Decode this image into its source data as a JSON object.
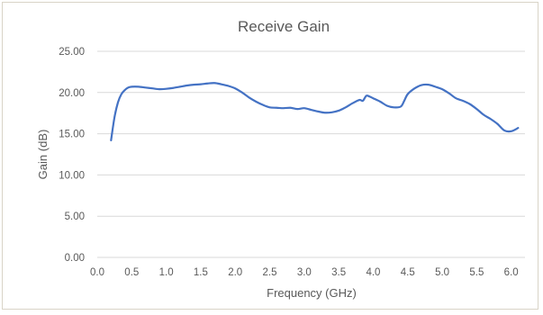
{
  "chart_data": {
    "type": "line",
    "title": "Receive Gain",
    "xlabel": "Frequency (GHz)",
    "ylabel": "Gain (dB)",
    "xlim": [
      0.0,
      6.2
    ],
    "ylim": [
      0.0,
      25.0
    ],
    "x_ticks": [
      "0.0",
      "0.5",
      "1.0",
      "1.5",
      "2.0",
      "2.5",
      "3.0",
      "3.5",
      "4.0",
      "4.5",
      "5.0",
      "5.5",
      "6.0"
    ],
    "y_ticks": [
      "0.00",
      "5.00",
      "10.00",
      "15.00",
      "20.00",
      "25.00"
    ],
    "grid": {
      "horizontal": true,
      "vertical": false
    },
    "legend": "none",
    "series": [
      {
        "color": "#4472c4",
        "x": [
          0.2,
          0.25,
          0.3,
          0.35,
          0.4,
          0.45,
          0.5,
          0.6,
          0.7,
          0.8,
          0.9,
          1.0,
          1.1,
          1.2,
          1.3,
          1.4,
          1.5,
          1.6,
          1.7,
          1.8,
          1.9,
          2.0,
          2.1,
          2.2,
          2.3,
          2.4,
          2.5,
          2.6,
          2.7,
          2.8,
          2.9,
          3.0,
          3.1,
          3.2,
          3.3,
          3.4,
          3.5,
          3.6,
          3.7,
          3.8,
          3.85,
          3.9,
          3.95,
          4.0,
          4.1,
          4.2,
          4.3,
          4.4,
          4.45,
          4.5,
          4.6,
          4.7,
          4.8,
          4.9,
          5.0,
          5.1,
          5.2,
          5.3,
          5.4,
          5.5,
          5.6,
          5.7,
          5.8,
          5.9,
          6.0,
          6.1
        ],
        "y": [
          14.2,
          17.0,
          18.8,
          19.8,
          20.3,
          20.6,
          20.7,
          20.7,
          20.6,
          20.5,
          20.4,
          20.45,
          20.55,
          20.7,
          20.85,
          20.95,
          21.0,
          21.1,
          21.15,
          21.0,
          20.8,
          20.5,
          20.0,
          19.4,
          18.9,
          18.5,
          18.2,
          18.15,
          18.1,
          18.15,
          18.0,
          18.1,
          17.9,
          17.7,
          17.55,
          17.6,
          17.8,
          18.2,
          18.7,
          19.1,
          19.0,
          19.6,
          19.5,
          19.3,
          18.9,
          18.4,
          18.2,
          18.3,
          19.0,
          19.8,
          20.5,
          20.9,
          20.95,
          20.7,
          20.4,
          19.9,
          19.3,
          19.0,
          18.6,
          18.0,
          17.3,
          16.8,
          16.2,
          15.4,
          15.3,
          15.7
        ]
      }
    ]
  }
}
